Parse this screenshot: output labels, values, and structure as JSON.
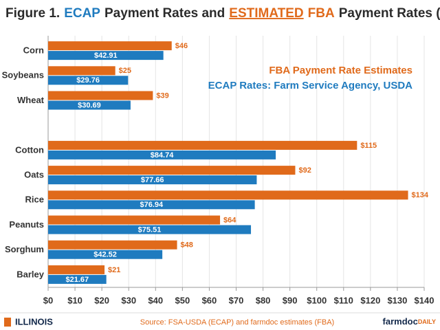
{
  "chart_data": {
    "type": "bar",
    "orientation": "horizontal",
    "title_parts": [
      {
        "text": "Figure 1.",
        "color": "#2b2b2b"
      },
      {
        "text": "ECAP",
        "color": "#1f7bbf"
      },
      {
        "text": "Payment Rates and",
        "color": "#2b2b2b"
      },
      {
        "text": "ESTIMATED",
        "color": "#e06a1b",
        "underline": true
      },
      {
        "text": "FBA",
        "color": "#e06a1b"
      },
      {
        "text": "Payment Rates ($/acre)",
        "color": "#2b2b2b"
      }
    ],
    "categories": [
      "Corn",
      "Soybeans",
      "Wheat",
      null,
      "Cotton",
      "Oats",
      "Rice",
      "Peanuts",
      "Sorghum",
      "Barley"
    ],
    "series": [
      {
        "name": "FBA Payment Rate Estimates",
        "color": "#e06a1b",
        "values": [
          46,
          25,
          39,
          null,
          115,
          92,
          134,
          64,
          48,
          21
        ],
        "value_labels": [
          "$46",
          "$25",
          "$39",
          null,
          "$115",
          "$92",
          "$134",
          "$64",
          "$48",
          "$21"
        ]
      },
      {
        "name": "ECAP Rates: Farm Service Agency, USDA",
        "color": "#1f7bbf",
        "values": [
          42.91,
          29.76,
          30.69,
          null,
          84.74,
          77.66,
          76.94,
          75.51,
          42.52,
          21.67
        ],
        "value_labels": [
          "$42.91",
          "$29.76",
          "$30.69",
          null,
          "$84.74",
          "$77.66",
          "$76.94",
          "$75.51",
          "$42.52",
          "$21.67"
        ]
      }
    ],
    "xlim": [
      0,
      140
    ],
    "xticks": [
      {
        "value": 0,
        "label": "$0"
      },
      {
        "value": 10,
        "label": "$10"
      },
      {
        "value": 20,
        "label": "$20"
      },
      {
        "value": 30,
        "label": "$30"
      },
      {
        "value": 40,
        "label": "$40"
      },
      {
        "value": 50,
        "label": "$50"
      },
      {
        "value": 60,
        "label": "$60"
      },
      {
        "value": 70,
        "label": "$70"
      },
      {
        "value": 80,
        "label": "$80"
      },
      {
        "value": 90,
        "label": "$90"
      },
      {
        "value": 100,
        "label": "$100"
      },
      {
        "value": 110,
        "label": "$110"
      },
      {
        "value": 120,
        "label": "$120"
      },
      {
        "value": 130,
        "label": "$130"
      },
      {
        "value": 140,
        "label": "$140"
      }
    ],
    "grid": true,
    "legend_position": "upper right",
    "source": "Source: FSA-USDA (ECAP) and farmdoc estimates (FBA)",
    "logo_left": "ILLINOIS",
    "logo_right": [
      "farmdoc",
      "DAILY"
    ]
  }
}
